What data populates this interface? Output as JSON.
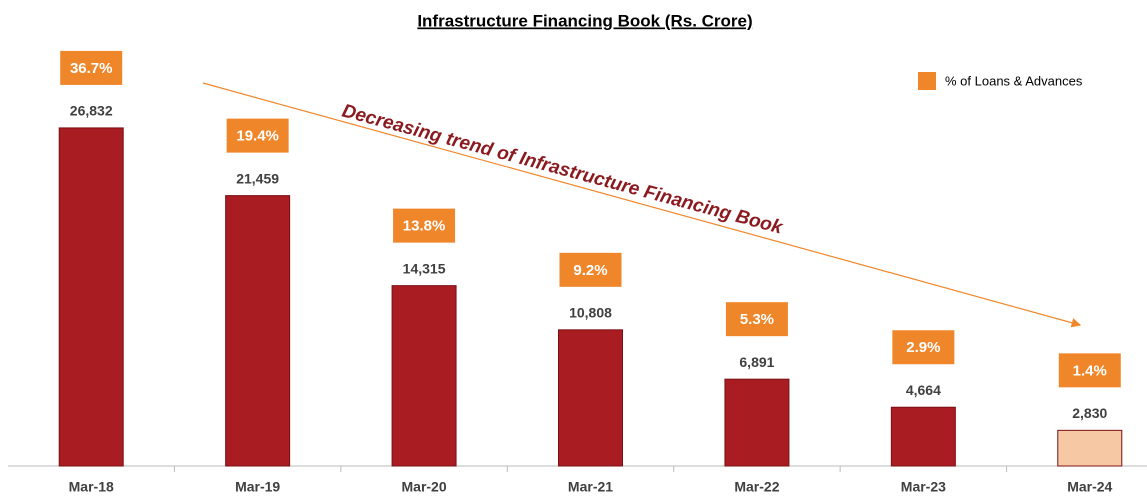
{
  "chart_data": {
    "type": "bar",
    "title": "Infrastructure Financing Book (Rs. Crore)",
    "categories": [
      "Mar-18",
      "Mar-19",
      "Mar-20",
      "Mar-21",
      "Mar-22",
      "Mar-23",
      "Mar-24"
    ],
    "values": [
      26832,
      21459,
      14315,
      10808,
      6891,
      4664,
      2830
    ],
    "value_labels": [
      "26,832",
      "21,459",
      "14,315",
      "10,808",
      "6,891",
      "4,664",
      "2,830"
    ],
    "colors": [
      "#a81c22",
      "#a81c22",
      "#a81c22",
      "#a81c22",
      "#a81c22",
      "#a81c22",
      "#f6c9a4"
    ],
    "ylim": [
      0,
      30000
    ],
    "series": [
      {
        "name": "% of Loans & Advances",
        "color": "#f0862a",
        "values": [
          36.7,
          19.4,
          13.8,
          9.2,
          5.3,
          2.9,
          1.4
        ],
        "value_labels": [
          "36.7%",
          "19.4%",
          "13.8%",
          "9.2%",
          "5.3%",
          "2.9%",
          "1.4%"
        ]
      }
    ],
    "annotation": "Decreasing trend of Infrastructure Financing Book",
    "legend": "top-right"
  }
}
